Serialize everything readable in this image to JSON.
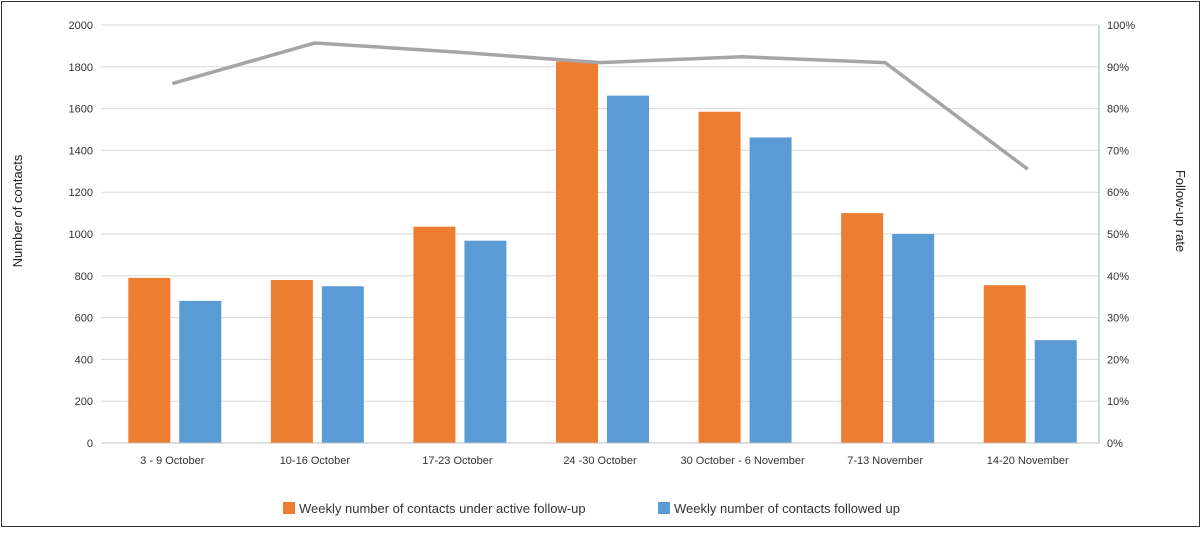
{
  "chart_data": {
    "type": "bar",
    "categories": [
      "3 - 9 October",
      "10-16 October",
      "17-23 October",
      "24 -30 October",
      "30 October - 6 November",
      "7-13 November",
      "14-20 November"
    ],
    "series": [
      {
        "name": "Weekly number of contacts under active follow-up",
        "type": "bar",
        "axis": "left",
        "values": [
          790,
          780,
          1035,
          1825,
          1585,
          1100,
          755
        ]
      },
      {
        "name": "Weekly number of contacts followed up",
        "type": "bar",
        "axis": "left",
        "values": [
          680,
          750,
          968,
          1662,
          1462,
          1000,
          492
        ]
      },
      {
        "type": "line",
        "axis": "right",
        "values": [
          86,
          95.7,
          93.5,
          91,
          92.4,
          91,
          65.5
        ]
      }
    ],
    "ylabel": "Number of contacts",
    "y2label": "Follow-up rate",
    "ylim": [
      0,
      2000
    ],
    "y2lim": [
      0,
      100
    ],
    "yticks": [
      "0",
      "200",
      "400",
      "600",
      "800",
      "1000",
      "1200",
      "1400",
      "1600",
      "1800",
      "2000"
    ],
    "y2ticks": [
      "0%",
      "10%",
      "20%",
      "30%",
      "40%",
      "50%",
      "60%",
      "70%",
      "80%",
      "90%",
      "100%"
    ],
    "grid": true,
    "legend_position": "bottom",
    "colors": {
      "active": "#ed7d31",
      "followed": "#5b9bd5",
      "rate": "#a5a5a5",
      "grid": "#d9d9d9",
      "axis2": "#8fb4d9"
    }
  }
}
